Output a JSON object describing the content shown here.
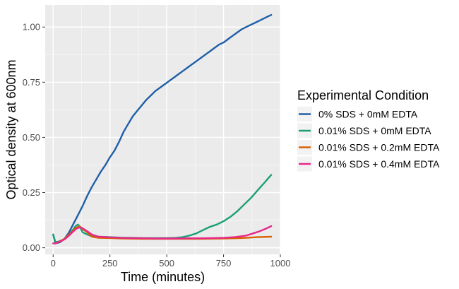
{
  "chart_data": {
    "type": "line",
    "xlabel": "Time (minutes)",
    "ylabel": "Optical density at 600nm",
    "xlim": [
      -35,
      1000
    ],
    "ylim": [
      -0.03,
      1.1
    ],
    "x_ticks": [
      0,
      250,
      500,
      750,
      1000
    ],
    "x_tick_labels": [
      "0",
      "250",
      "500",
      "750",
      "1000"
    ],
    "y_ticks": [
      0,
      0.25,
      0.5,
      0.75,
      1.0
    ],
    "y_tick_labels": [
      "0.00",
      "0.25",
      "0.50",
      "0.75",
      "1.00"
    ],
    "grid": true,
    "legend": {
      "title": "Experimental Condition",
      "position": "right"
    },
    "series": [
      {
        "name": "0% SDS + 0mM EDTA",
        "color": "#1f5fa8",
        "x": [
          0,
          10,
          30,
          50,
          70,
          90,
          110,
          130,
          150,
          170,
          190,
          210,
          230,
          250,
          270,
          290,
          310,
          330,
          350,
          370,
          390,
          410,
          430,
          450,
          470,
          490,
          510,
          530,
          550,
          570,
          590,
          610,
          630,
          650,
          670,
          690,
          710,
          730,
          750,
          770,
          790,
          810,
          830,
          850,
          870,
          890,
          910,
          930,
          950,
          960
        ],
        "values": [
          0.06,
          0.02,
          0.025,
          0.04,
          0.07,
          0.11,
          0.15,
          0.19,
          0.235,
          0.275,
          0.31,
          0.345,
          0.375,
          0.41,
          0.44,
          0.48,
          0.525,
          0.56,
          0.595,
          0.62,
          0.645,
          0.67,
          0.69,
          0.71,
          0.725,
          0.74,
          0.755,
          0.77,
          0.785,
          0.8,
          0.815,
          0.83,
          0.845,
          0.86,
          0.875,
          0.89,
          0.905,
          0.92,
          0.93,
          0.945,
          0.96,
          0.975,
          0.99,
          1.0,
          1.01,
          1.02,
          1.03,
          1.04,
          1.05,
          1.055
        ]
      },
      {
        "name": "0.01% SDS + 0mM EDTA",
        "color": "#1b9e77",
        "x": [
          0,
          10,
          30,
          50,
          70,
          90,
          100,
          110,
          120,
          130,
          150,
          170,
          200,
          250,
          300,
          350,
          400,
          450,
          500,
          540,
          570,
          600,
          630,
          660,
          690,
          720,
          750,
          780,
          810,
          840,
          870,
          900,
          930,
          960
        ],
        "values": [
          0.06,
          0.025,
          0.03,
          0.04,
          0.06,
          0.085,
          0.1,
          0.105,
          0.09,
          0.07,
          0.06,
          0.052,
          0.05,
          0.048,
          0.046,
          0.045,
          0.044,
          0.044,
          0.044,
          0.045,
          0.048,
          0.055,
          0.065,
          0.08,
          0.095,
          0.105,
          0.12,
          0.14,
          0.165,
          0.195,
          0.225,
          0.26,
          0.295,
          0.33
        ]
      },
      {
        "name": "0.01% SDS + 0.2mM EDTA",
        "color": "#d95f02",
        "x": [
          0,
          10,
          30,
          50,
          70,
          90,
          100,
          110,
          120,
          130,
          150,
          170,
          200,
          250,
          300,
          350,
          400,
          450,
          500,
          550,
          600,
          650,
          700,
          750,
          800,
          850,
          900,
          960
        ],
        "values": [
          0.02,
          0.02,
          0.03,
          0.04,
          0.06,
          0.08,
          0.09,
          0.095,
          0.095,
          0.085,
          0.07,
          0.05,
          0.045,
          0.044,
          0.042,
          0.041,
          0.04,
          0.04,
          0.04,
          0.04,
          0.04,
          0.04,
          0.041,
          0.042,
          0.043,
          0.045,
          0.048,
          0.05
        ]
      },
      {
        "name": "0.01% SDS + 0.4mM EDTA",
        "color": "#e7298a",
        "x": [
          0,
          10,
          30,
          50,
          70,
          90,
          100,
          110,
          120,
          130,
          150,
          170,
          200,
          250,
          300,
          350,
          400,
          450,
          500,
          550,
          600,
          650,
          700,
          750,
          800,
          850,
          880,
          910,
          940,
          960
        ],
        "values": [
          0.02,
          0.02,
          0.028,
          0.038,
          0.055,
          0.075,
          0.085,
          0.09,
          0.092,
          0.088,
          0.075,
          0.06,
          0.05,
          0.047,
          0.045,
          0.044,
          0.043,
          0.042,
          0.042,
          0.042,
          0.043,
          0.043,
          0.044,
          0.045,
          0.048,
          0.055,
          0.065,
          0.075,
          0.088,
          0.098
        ]
      }
    ]
  }
}
